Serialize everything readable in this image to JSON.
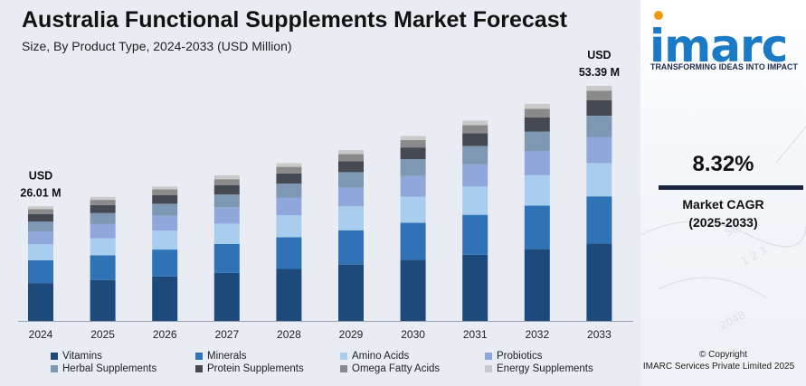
{
  "header": {
    "title": "Australia Functional Supplements Market Forecast",
    "subtitle": "Size, By Product Type, 2024-2033 (USD Million)"
  },
  "chart_data": {
    "type": "bar",
    "stacked": true,
    "categories": [
      "2024",
      "2025",
      "2026",
      "2027",
      "2028",
      "2029",
      "2030",
      "2031",
      "2032",
      "2033"
    ],
    "totals": [
      26.01,
      28.18,
      30.52,
      33.06,
      35.81,
      38.79,
      42.02,
      45.51,
      49.3,
      53.39
    ],
    "series": [
      {
        "name": "Vitamins",
        "color": "#1e4a7b",
        "values": [
          8.6,
          9.3,
          10.1,
          10.9,
          11.8,
          12.8,
          13.9,
          15.0,
          16.3,
          17.6
        ]
      },
      {
        "name": "Minerals",
        "color": "#2f73b6",
        "values": [
          5.2,
          5.6,
          6.1,
          6.6,
          7.2,
          7.8,
          8.4,
          9.1,
          9.9,
          10.7
        ]
      },
      {
        "name": "Amino Acids",
        "color": "#a9cdef",
        "values": [
          3.6,
          3.9,
          4.3,
          4.6,
          5.0,
          5.4,
          5.9,
          6.4,
          6.9,
          7.5
        ]
      },
      {
        "name": "Probiotics",
        "color": "#8fa7db",
        "values": [
          2.9,
          3.2,
          3.4,
          3.7,
          4.0,
          4.3,
          4.7,
          5.1,
          5.5,
          6.0
        ]
      },
      {
        "name": "Herbal Supplements",
        "color": "#7e97b3",
        "values": [
          2.3,
          2.5,
          2.7,
          2.9,
          3.2,
          3.5,
          3.8,
          4.1,
          4.4,
          4.8
        ]
      },
      {
        "name": "Protein Supplements",
        "color": "#454a52",
        "values": [
          1.7,
          1.8,
          2.0,
          2.1,
          2.3,
          2.5,
          2.7,
          2.9,
          3.2,
          3.5
        ]
      },
      {
        "name": "Omega Fatty Acids",
        "color": "#8a8a8a",
        "values": [
          1.1,
          1.2,
          1.3,
          1.4,
          1.5,
          1.6,
          1.7,
          1.9,
          2.0,
          2.2
        ]
      },
      {
        "name": "Energy Supplements",
        "color": "#c9c9c9",
        "values": [
          0.61,
          0.68,
          0.62,
          0.86,
          0.81,
          0.89,
          0.92,
          1.01,
          1.1,
          1.09
        ]
      }
    ],
    "labels": [
      {
        "category": "2024",
        "currency": "USD",
        "value": "26.01 M"
      },
      {
        "category": "2033",
        "currency": "USD",
        "value": "53.39 M"
      }
    ],
    "xlabel": "",
    "ylabel": "",
    "grid": false,
    "legend_position": "bottom"
  },
  "brand": {
    "logo_text": "imarc",
    "tagline": "TRANSFORMING IDEAS INTO IMPACT",
    "primary_color": "#1a7bc4",
    "accent_color": "#f39c12"
  },
  "cagr": {
    "value": "8.32%",
    "label": "Market CAGR",
    "period": "(2025-2033)"
  },
  "footer": {
    "copyright_line1": "© Copyright",
    "copyright_line2": "IMARC Services Private Limited 2025"
  }
}
